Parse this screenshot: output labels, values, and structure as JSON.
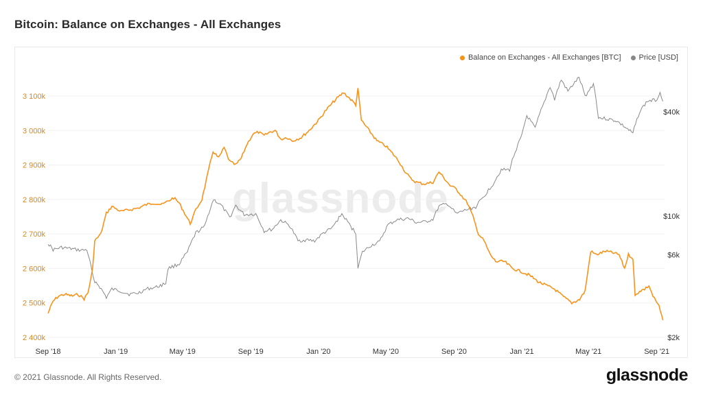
{
  "title": "Bitcoin: Balance on Exchanges - All Exchanges",
  "footer": "© 2021 Glassnode. All Rights Reserved.",
  "brand": "glassnode",
  "watermark": "glassnode",
  "legend": {
    "balance": "Balance on Exchanges - All Exchanges [BTC]",
    "price": "Price [USD]"
  },
  "colors": {
    "balance": "#f7931a",
    "price": "#888888",
    "axis_left": "#d9861b",
    "grid": "#f0f0f0"
  },
  "chart_data": {
    "type": "line",
    "title": "Bitcoin: Balance on Exchanges - All Exchanges",
    "x_ticks": [
      "Sep '18",
      "Jan '19",
      "May '19",
      "Sep '19",
      "Jan '20",
      "May '20",
      "Sep '20",
      "Jan '21",
      "May '21",
      "Sep '21"
    ],
    "y_left_ticks": [
      "2 400k",
      "2 500k",
      "2 600k",
      "2 700k",
      "2 800k",
      "2 900k",
      "3 000k",
      "3 100k"
    ],
    "y_left_values": [
      2400,
      2500,
      2600,
      2700,
      2800,
      2900,
      3000,
      3100
    ],
    "y_right_ticks": [
      "$2k",
      "$6k",
      "$10k",
      "$40k"
    ],
    "y_right_values": [
      2000,
      6000,
      10000,
      40000
    ],
    "y_right_scale": "log",
    "grid": true,
    "legend_position": "top-right",
    "series": [
      {
        "name": "Balance on Exchanges - All Exchanges [BTC]",
        "axis": "left",
        "unit": "k BTC",
        "points": [
          [
            "2018-09-01",
            2470
          ],
          [
            "2018-09-10",
            2505
          ],
          [
            "2018-09-20",
            2520
          ],
          [
            "2018-10-01",
            2525
          ],
          [
            "2018-10-15",
            2520
          ],
          [
            "2018-10-25",
            2525
          ],
          [
            "2018-11-05",
            2512
          ],
          [
            "2018-11-12",
            2530
          ],
          [
            "2018-11-20",
            2595
          ],
          [
            "2018-11-24",
            2680
          ],
          [
            "2018-12-05",
            2700
          ],
          [
            "2018-12-15",
            2760
          ],
          [
            "2018-12-25",
            2780
          ],
          [
            "2019-01-10",
            2765
          ],
          [
            "2019-01-25",
            2770
          ],
          [
            "2019-02-10",
            2775
          ],
          [
            "2019-02-25",
            2785
          ],
          [
            "2019-03-10",
            2790
          ],
          [
            "2019-03-25",
            2785
          ],
          [
            "2019-04-05",
            2795
          ],
          [
            "2019-04-15",
            2805
          ],
          [
            "2019-04-25",
            2790
          ],
          [
            "2019-05-05",
            2760
          ],
          [
            "2019-05-15",
            2730
          ],
          [
            "2019-05-25",
            2770
          ],
          [
            "2019-06-05",
            2800
          ],
          [
            "2019-06-15",
            2870
          ],
          [
            "2019-06-25",
            2940
          ],
          [
            "2019-07-05",
            2920
          ],
          [
            "2019-07-15",
            2950
          ],
          [
            "2019-07-25",
            2910
          ],
          [
            "2019-08-05",
            2900
          ],
          [
            "2019-08-15",
            2920
          ],
          [
            "2019-08-25",
            2960
          ],
          [
            "2019-09-05",
            2990
          ],
          [
            "2019-09-15",
            2995
          ],
          [
            "2019-09-25",
            2985
          ],
          [
            "2019-10-05",
            2995
          ],
          [
            "2019-10-15",
            3000
          ],
          [
            "2019-10-25",
            2975
          ],
          [
            "2019-11-05",
            2980
          ],
          [
            "2019-11-15",
            2970
          ],
          [
            "2019-12-01",
            2980
          ],
          [
            "2019-12-15",
            3000
          ],
          [
            "2020-01-01",
            3030
          ],
          [
            "2020-01-15",
            3060
          ],
          [
            "2020-02-01",
            3090
          ],
          [
            "2020-02-15",
            3110
          ],
          [
            "2020-02-28",
            3090
          ],
          [
            "2020-03-08",
            3075
          ],
          [
            "2020-03-12",
            3120
          ],
          [
            "2020-03-18",
            3030
          ],
          [
            "2020-04-01",
            3000
          ],
          [
            "2020-04-15",
            2970
          ],
          [
            "2020-05-01",
            2955
          ],
          [
            "2020-05-15",
            2930
          ],
          [
            "2020-05-25",
            2910
          ],
          [
            "2020-06-05",
            2880
          ],
          [
            "2020-06-15",
            2860
          ],
          [
            "2020-06-25",
            2850
          ],
          [
            "2020-07-10",
            2845
          ],
          [
            "2020-07-25",
            2850
          ],
          [
            "2020-08-05",
            2880
          ],
          [
            "2020-08-15",
            2860
          ],
          [
            "2020-08-25",
            2840
          ],
          [
            "2020-09-05",
            2830
          ],
          [
            "2020-09-15",
            2810
          ],
          [
            "2020-09-25",
            2790
          ],
          [
            "2020-10-05",
            2750
          ],
          [
            "2020-10-15",
            2700
          ],
          [
            "2020-10-25",
            2680
          ],
          [
            "2020-11-05",
            2640
          ],
          [
            "2020-11-15",
            2620
          ],
          [
            "2020-12-01",
            2620
          ],
          [
            "2020-12-15",
            2600
          ],
          [
            "2021-01-01",
            2590
          ],
          [
            "2021-01-15",
            2580
          ],
          [
            "2021-02-01",
            2560
          ],
          [
            "2021-02-15",
            2550
          ],
          [
            "2021-03-01",
            2540
          ],
          [
            "2021-03-15",
            2520
          ],
          [
            "2021-04-01",
            2500
          ],
          [
            "2021-04-15",
            2510
          ],
          [
            "2021-04-25",
            2535
          ],
          [
            "2021-05-05",
            2650
          ],
          [
            "2021-05-15",
            2640
          ],
          [
            "2021-06-01",
            2650
          ],
          [
            "2021-06-15",
            2645
          ],
          [
            "2021-06-25",
            2640
          ],
          [
            "2021-07-05",
            2600
          ],
          [
            "2021-07-12",
            2640
          ],
          [
            "2021-07-20",
            2630
          ],
          [
            "2021-07-24",
            2520
          ],
          [
            "2021-08-01",
            2535
          ],
          [
            "2021-08-10",
            2540
          ],
          [
            "2021-08-18",
            2550
          ],
          [
            "2021-08-25",
            2520
          ],
          [
            "2021-09-05",
            2490
          ],
          [
            "2021-09-12",
            2450
          ]
        ]
      },
      {
        "name": "Price [USD]",
        "axis": "right",
        "unit": "USD",
        "points": [
          [
            "2018-09-01",
            7000
          ],
          [
            "2018-09-10",
            6400
          ],
          [
            "2018-09-25",
            6600
          ],
          [
            "2018-10-10",
            6500
          ],
          [
            "2018-10-30",
            6350
          ],
          [
            "2018-11-10",
            6400
          ],
          [
            "2018-11-15",
            5500
          ],
          [
            "2018-11-22",
            4300
          ],
          [
            "2018-12-01",
            4000
          ],
          [
            "2018-12-15",
            3400
          ],
          [
            "2018-12-25",
            3800
          ],
          [
            "2019-01-10",
            3700
          ],
          [
            "2019-01-25",
            3550
          ],
          [
            "2019-02-10",
            3600
          ],
          [
            "2019-02-25",
            3800
          ],
          [
            "2019-03-15",
            3900
          ],
          [
            "2019-04-01",
            4100
          ],
          [
            "2019-04-05",
            5000
          ],
          [
            "2019-04-25",
            5300
          ],
          [
            "2019-05-10",
            6200
          ],
          [
            "2019-05-25",
            8000
          ],
          [
            "2019-06-10",
            8700
          ],
          [
            "2019-06-26",
            12500
          ],
          [
            "2019-07-10",
            11500
          ],
          [
            "2019-07-25",
            9800
          ],
          [
            "2019-08-05",
            11500
          ],
          [
            "2019-08-20",
            10200
          ],
          [
            "2019-09-10",
            10300
          ],
          [
            "2019-09-25",
            8200
          ],
          [
            "2019-10-10",
            8400
          ],
          [
            "2019-10-25",
            9500
          ],
          [
            "2019-11-10",
            8800
          ],
          [
            "2019-11-25",
            7200
          ],
          [
            "2019-12-10",
            7300
          ],
          [
            "2019-12-25",
            7200
          ],
          [
            "2020-01-10",
            8000
          ],
          [
            "2020-01-25",
            8500
          ],
          [
            "2020-02-12",
            10300
          ],
          [
            "2020-02-28",
            8700
          ],
          [
            "2020-03-08",
            8000
          ],
          [
            "2020-03-12",
            5000
          ],
          [
            "2020-03-20",
            6200
          ],
          [
            "2020-04-05",
            6800
          ],
          [
            "2020-04-20",
            7100
          ],
          [
            "2020-05-05",
            8900
          ],
          [
            "2020-05-20",
            9500
          ],
          [
            "2020-06-10",
            9700
          ],
          [
            "2020-06-25",
            9200
          ],
          [
            "2020-07-10",
            9250
          ],
          [
            "2020-07-25",
            9600
          ],
          [
            "2020-08-05",
            11400
          ],
          [
            "2020-08-20",
            11800
          ],
          [
            "2020-09-05",
            10300
          ],
          [
            "2020-09-20",
            10800
          ],
          [
            "2020-10-10",
            11300
          ],
          [
            "2020-10-25",
            13000
          ],
          [
            "2020-11-10",
            15300
          ],
          [
            "2020-11-25",
            18500
          ],
          [
            "2020-12-10",
            18500
          ],
          [
            "2020-12-20",
            23500
          ],
          [
            "2021-01-01",
            29000
          ],
          [
            "2021-01-10",
            38000
          ],
          [
            "2021-01-25",
            32000
          ],
          [
            "2021-02-10",
            45000
          ],
          [
            "2021-02-21",
            56000
          ],
          [
            "2021-03-01",
            47000
          ],
          [
            "2021-03-13",
            61000
          ],
          [
            "2021-03-25",
            52500
          ],
          [
            "2021-04-14",
            63000
          ],
          [
            "2021-04-25",
            49000
          ],
          [
            "2021-05-10",
            58000
          ],
          [
            "2021-05-19",
            37000
          ],
          [
            "2021-06-01",
            36500
          ],
          [
            "2021-06-20",
            35500
          ],
          [
            "2021-07-01",
            33500
          ],
          [
            "2021-07-20",
            30000
          ],
          [
            "2021-08-01",
            40000
          ],
          [
            "2021-08-15",
            46000
          ],
          [
            "2021-09-01",
            47000
          ],
          [
            "2021-09-07",
            52000
          ],
          [
            "2021-09-12",
            46000
          ]
        ]
      }
    ]
  }
}
